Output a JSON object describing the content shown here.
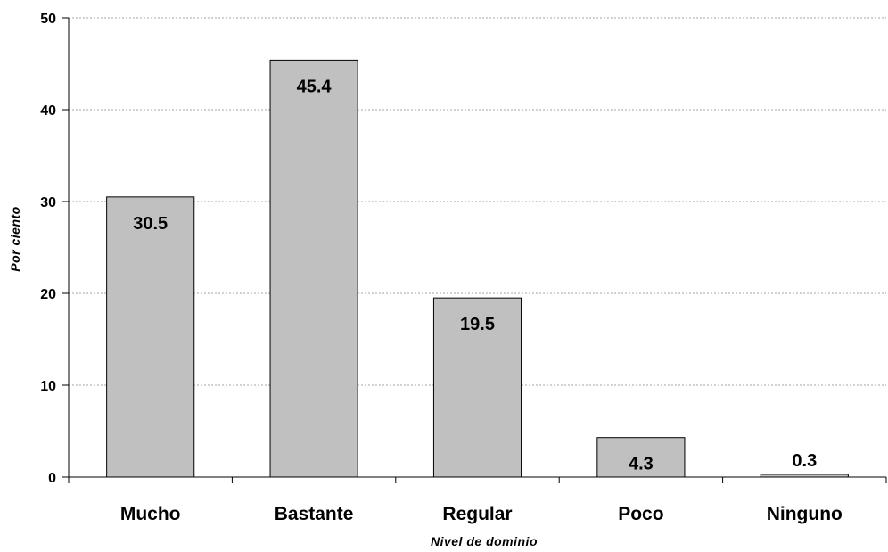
{
  "chart_data": {
    "type": "bar",
    "categories": [
      "Mucho",
      "Bastante",
      "Regular",
      "Poco",
      "Ninguno"
    ],
    "values": [
      30.5,
      45.4,
      19.5,
      4.3,
      0.3
    ],
    "data_labels": [
      "30.5",
      "45.4",
      "19.5",
      "4.3",
      "0.3"
    ],
    "title": "",
    "xlabel": "Nivel de dominio",
    "ylabel": "Por ciento",
    "ylim": [
      0,
      50
    ],
    "yticks": [
      0,
      10,
      20,
      30,
      40,
      50
    ],
    "grid": "horizontal-dashed",
    "legend": "none",
    "colors": {
      "bar_fill": "#c0c0c0",
      "bar_stroke": "#000000",
      "gridline": "#a6a6a6",
      "axis": "#000000"
    }
  }
}
